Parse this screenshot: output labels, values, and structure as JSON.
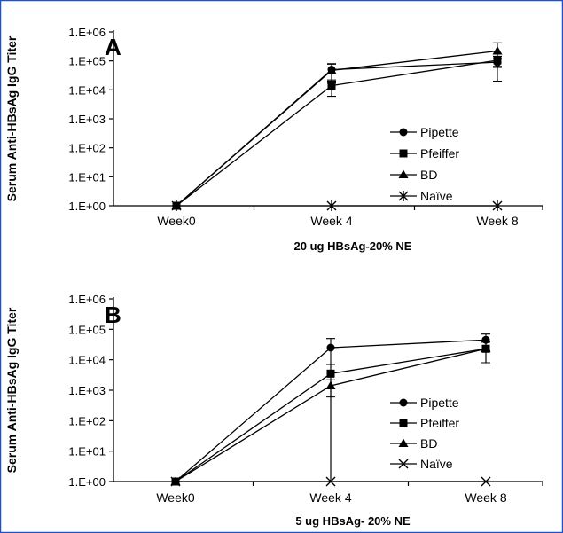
{
  "chart_data": [
    {
      "type": "line",
      "panel_label": "A",
      "xlabel": "20 ug HBsAg-20% NE",
      "ylabel": "Serum Anti-HBsAg IgG Titer",
      "categories": [
        "Week0",
        "Week 4",
        "Week 8"
      ],
      "y_scale": "log",
      "ylim": [
        1,
        1000000
      ],
      "y_tick_labels": [
        "1.E+00",
        "1.E+01",
        "1.E+02",
        "1.E+03",
        "1.E+04",
        "1.E+05",
        "1.E+06"
      ],
      "legend_position": "center-right",
      "grid": false,
      "series": [
        {
          "name": "Pipette",
          "marker": "circle",
          "values": [
            1,
            50000,
            90000
          ],
          "error": [
            0,
            30000,
            30000
          ]
        },
        {
          "name": "Pfeiffer",
          "marker": "square",
          "values": [
            1,
            14000,
            105000
          ],
          "error": [
            0,
            8000,
            40000
          ]
        },
        {
          "name": "BD",
          "marker": "triangle",
          "values": [
            1,
            47000,
            220000
          ],
          "error": [
            0,
            30000,
            200000
          ]
        },
        {
          "name": "Naïve",
          "marker": "star",
          "values": [
            1,
            1,
            1
          ],
          "error": [
            0,
            0,
            0
          ]
        }
      ]
    },
    {
      "type": "line",
      "panel_label": "B",
      "xlabel": "5 ug HBsAg- 20% NE",
      "ylabel": "Serum Anti-HBsAg IgG Titer",
      "categories": [
        "Week0",
        "Week 4",
        "Week 8"
      ],
      "y_scale": "log",
      "ylim": [
        1,
        1000000
      ],
      "y_tick_labels": [
        "1.E+00",
        "1.E+01",
        "1.E+02",
        "1.E+03",
        "1.E+04",
        "1.E+05",
        "1.E+06"
      ],
      "legend_position": "center-right",
      "grid": false,
      "series": [
        {
          "name": "Pipette",
          "marker": "circle",
          "values": [
            1,
            25000,
            45000
          ],
          "error": [
            0,
            25000,
            25000
          ]
        },
        {
          "name": "Pfeiffer",
          "marker": "square",
          "values": [
            1,
            3500,
            23000
          ],
          "error": [
            0,
            3500,
            15000
          ]
        },
        {
          "name": "BD",
          "marker": "triangle",
          "values": [
            1,
            1400,
            23000
          ],
          "error": [
            0,
            800,
            15000
          ]
        },
        {
          "name": "Naïve",
          "marker": "x",
          "values": [
            1,
            1,
            1
          ],
          "error": [
            0,
            0,
            0
          ]
        }
      ]
    }
  ]
}
